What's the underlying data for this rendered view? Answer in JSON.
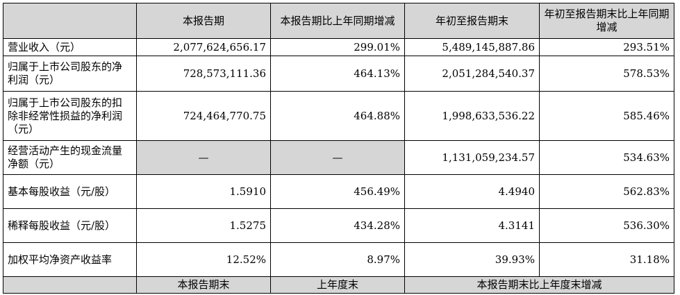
{
  "header": {
    "blank": "",
    "col1": "本报告期",
    "col2": "本报告期比上年同期增减",
    "col3": "年初至报告期末",
    "col4": "年初至报告期末比上年同期增减"
  },
  "rows": [
    {
      "label": "营业收入（元）",
      "v1": "2,077,624,656.17",
      "v2": "299.01%",
      "v3": "5,489,145,887.86",
      "v4": "293.51%"
    },
    {
      "label": "归属于上市公司股东的净利润（元）",
      "v1": "728,573,111.36",
      "v2": "464.13%",
      "v3": "2,051,284,540.37",
      "v4": "578.53%"
    },
    {
      "label": "归属于上市公司股东的扣除非经常性损益的净利润（元）",
      "v1": "724,464,770.75",
      "v2": "464.88%",
      "v3": "1,998,633,536.22",
      "v4": "585.46%"
    },
    {
      "label": "经营活动产生的现金流量净额（元）",
      "v1": "—",
      "v2": "—",
      "v3": "1,131,059,234.57",
      "v4": "534.63%"
    },
    {
      "label": "基本每股收益（元/股）",
      "v1": "1.5910",
      "v2": "456.49%",
      "v3": "4.4940",
      "v4": "562.83%"
    },
    {
      "label": "稀释每股收益（元/股）",
      "v1": "1.5275",
      "v2": "434.28%",
      "v3": "4.3141",
      "v4": "536.30%"
    },
    {
      "label": "加权平均净资产收益率",
      "v1": "12.52%",
      "v2": "8.97%",
      "v3": "39.93%",
      "v4": "31.18%"
    }
  ],
  "footer": {
    "blank": "",
    "col1": "本报告期末",
    "col2": "上年度末",
    "col34": "本报告期末比上年度末增减"
  }
}
